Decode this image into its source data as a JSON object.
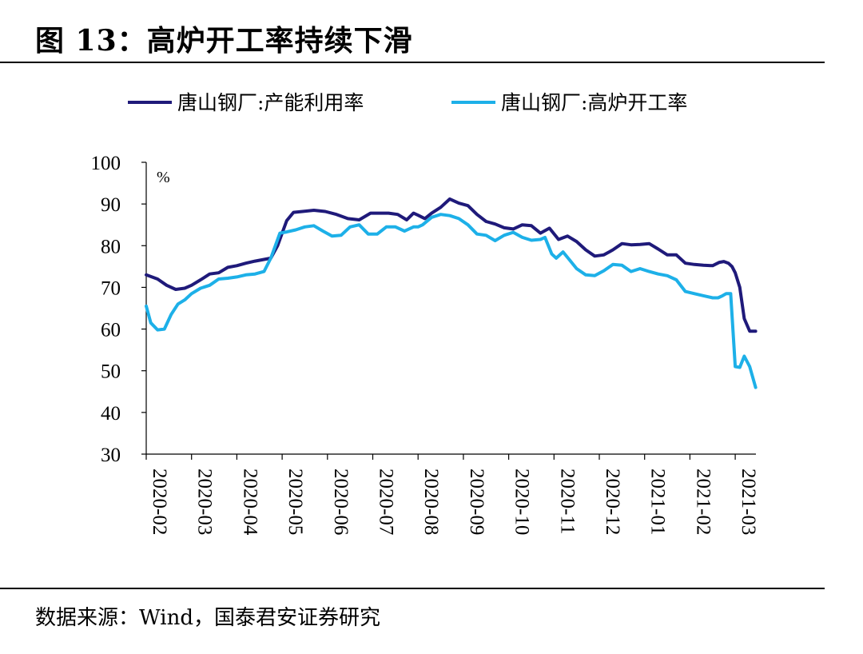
{
  "header": {
    "title": "图 13：高炉开工率持续下滑"
  },
  "footer": {
    "source": "数据来源：Wind，国泰君安证券研究"
  },
  "chart_data": {
    "type": "line",
    "unit": "%",
    "ylim": [
      30,
      100
    ],
    "yticks": [
      30,
      40,
      50,
      60,
      70,
      80,
      90,
      100
    ],
    "xlim": [
      0,
      13.55
    ],
    "xticks": [
      "2020-02",
      "2020-03",
      "2020-04",
      "2020-05",
      "2020-06",
      "2020-07",
      "2020-08",
      "2020-09",
      "2020-10",
      "2020-11",
      "2020-12",
      "2021-01",
      "2021-02",
      "2021-03"
    ],
    "legend_position": "top",
    "grid": false,
    "series": [
      {
        "name": "唐山钢厂:产能利用率",
        "color": "#1f1a7a",
        "x": [
          0,
          0.25,
          0.45,
          0.65,
          0.85,
          1.0,
          1.2,
          1.4,
          1.6,
          1.8,
          2.0,
          2.2,
          2.4,
          2.6,
          2.75,
          2.9,
          3.0,
          3.1,
          3.25,
          3.45,
          3.7,
          3.95,
          4.2,
          4.45,
          4.7,
          4.95,
          5.15,
          5.35,
          5.55,
          5.75,
          5.9,
          6.0,
          6.15,
          6.3,
          6.5,
          6.7,
          6.9,
          7.1,
          7.3,
          7.5,
          7.7,
          7.9,
          8.1,
          8.3,
          8.5,
          8.7,
          8.9,
          9.1,
          9.3,
          9.5,
          9.7,
          9.9,
          10.1,
          10.3,
          10.5,
          10.7,
          10.9,
          11.1,
          11.3,
          11.5,
          11.7,
          11.9,
          12.1,
          12.3,
          12.5,
          12.65,
          12.75,
          12.85,
          12.93,
          13.0,
          13.1,
          13.2,
          13.32,
          13.45
        ],
        "y": [
          73,
          72,
          70.5,
          69.5,
          69.8,
          70.5,
          71.8,
          73.2,
          73.5,
          74.8,
          75.2,
          75.8,
          76.3,
          76.7,
          77,
          80,
          83,
          86,
          88,
          88.2,
          88.5,
          88.2,
          87.5,
          86.5,
          86.2,
          87.8,
          87.8,
          87.8,
          87.5,
          86.2,
          87.8,
          87.3,
          86.5,
          87.8,
          89.2,
          91.2,
          90.2,
          89.6,
          87.5,
          85.8,
          85.2,
          84.3,
          84.0,
          85.0,
          84.8,
          83.0,
          84.2,
          81.5,
          82.3,
          81.0,
          79.0,
          77.5,
          77.8,
          79.0,
          80.5,
          80.2,
          80.3,
          80.5,
          79.2,
          77.8,
          77.8,
          75.8,
          75.5,
          75.3,
          75.2,
          76.0,
          76.2,
          75.8,
          75.0,
          73.5,
          70.0,
          62.5,
          59.5,
          59.5
        ]
      },
      {
        "name": "唐山钢厂:高炉开工率",
        "color": "#1db0e8",
        "x": [
          0,
          0.1,
          0.25,
          0.4,
          0.55,
          0.7,
          0.85,
          1.0,
          1.2,
          1.4,
          1.6,
          1.8,
          2.0,
          2.2,
          2.4,
          2.6,
          2.75,
          2.85,
          2.95,
          3.1,
          3.3,
          3.5,
          3.7,
          3.9,
          4.1,
          4.3,
          4.5,
          4.7,
          4.9,
          5.1,
          5.3,
          5.5,
          5.7,
          5.9,
          6.0,
          6.1,
          6.3,
          6.5,
          6.7,
          6.9,
          7.1,
          7.3,
          7.5,
          7.7,
          7.9,
          8.1,
          8.3,
          8.5,
          8.7,
          8.8,
          8.95,
          9.05,
          9.2,
          9.35,
          9.5,
          9.7,
          9.9,
          10.1,
          10.3,
          10.5,
          10.7,
          10.9,
          11.1,
          11.3,
          11.5,
          11.7,
          11.9,
          12.1,
          12.3,
          12.5,
          12.62,
          12.72,
          12.8,
          12.9,
          13.0,
          13.1,
          13.2,
          13.32,
          13.45
        ],
        "y": [
          65.5,
          61.5,
          59.8,
          60.0,
          63.5,
          66.0,
          67.0,
          68.5,
          69.8,
          70.5,
          72.0,
          72.2,
          72.5,
          73.0,
          73.2,
          73.8,
          77.0,
          80.0,
          83.0,
          83.3,
          83.8,
          84.5,
          84.8,
          83.5,
          82.3,
          82.5,
          84.5,
          85.0,
          82.8,
          82.8,
          84.5,
          84.5,
          83.5,
          84.5,
          84.5,
          85.0,
          86.8,
          87.5,
          87.2,
          86.5,
          85.0,
          82.8,
          82.5,
          81.2,
          82.5,
          83.2,
          82.0,
          81.3,
          81.5,
          82.0,
          78.0,
          77.0,
          78.5,
          76.5,
          74.5,
          73.0,
          72.8,
          74.0,
          75.5,
          75.3,
          73.8,
          74.5,
          73.8,
          73.2,
          72.8,
          71.8,
          69.0,
          68.5,
          68.0,
          67.5,
          67.5,
          68.0,
          68.5,
          68.5,
          51.0,
          50.8,
          53.5,
          51.0,
          46.0
        ]
      }
    ]
  }
}
